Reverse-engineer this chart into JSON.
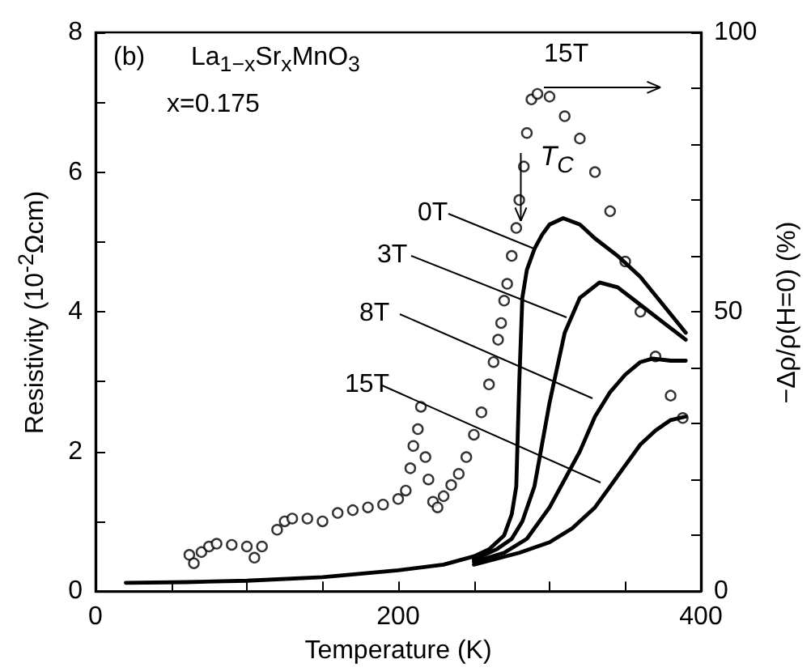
{
  "chart_data": {
    "type": "line",
    "xlabel": "Temperature (K)",
    "ylabel": "Resistivity (10$^{-2}$Ωcm)",
    "y2label": "−Δρ/ρ(H=0) (%)",
    "annotations": [
      "(b)",
      "La$_{1−x}$Sr$_{x}$MnO$_{3}$",
      "x=0.175",
      {
        "text": "T$_{C}$",
        "x": 281,
        "y": 5.3
      }
    ],
    "xlim": [
      0,
      400
    ],
    "xticks": [
      0,
      {
        "value": 50,
        "label": null
      },
      {
        "value": 100,
        "label": null
      },
      {
        "value": 150,
        "label": null
      },
      200,
      {
        "value": 250,
        "label": null
      },
      {
        "value": 300,
        "label": null
      },
      {
        "value": 350,
        "label": null
      },
      400
    ],
    "ylim": [
      0,
      8
    ],
    "yticks": [
      0,
      {
        "value": 1,
        "label": null
      },
      2,
      {
        "value": 3,
        "label": null
      },
      4,
      {
        "value": 5,
        "label": null
      },
      6,
      {
        "value": 7,
        "label": null
      },
      8
    ],
    "y2lim": [
      0,
      100
    ],
    "y2ticks": [
      0,
      {
        "value": 10,
        "label": null
      },
      {
        "value": 20,
        "label": null
      },
      {
        "value": 30,
        "label": null
      },
      {
        "value": 40,
        "label": null
      },
      50,
      {
        "value": 60,
        "label": null
      },
      {
        "value": 70,
        "label": null
      },
      {
        "value": 80,
        "label": null
      },
      {
        "value": 90,
        "label": null
      },
      100
    ],
    "grid": false,
    "legend": false,
    "marker": "none",
    "line_style": "solid",
    "series": [
      {
        "name": "0T",
        "color": "#000000",
        "x": [
          20,
          60,
          100,
          150,
          200,
          230,
          250,
          260,
          270,
          275,
          278,
          280,
          282,
          285,
          290,
          295,
          300,
          309,
          320,
          330,
          345,
          360,
          375,
          390
        ],
        "values": [
          0.12,
          0.13,
          0.15,
          0.2,
          0.3,
          0.38,
          0.5,
          0.6,
          0.8,
          1.1,
          1.5,
          3.0,
          4.2,
          4.6,
          4.9,
          5.1,
          5.25,
          5.34,
          5.25,
          5.05,
          4.8,
          4.5,
          4.1,
          3.7
        ]
      },
      {
        "name": "3T",
        "color": "#000000",
        "x": [
          250,
          265,
          275,
          282,
          290,
          300,
          310,
          320,
          333,
          345,
          360,
          375,
          390
        ],
        "values": [
          0.45,
          0.6,
          0.75,
          1.0,
          1.5,
          2.7,
          3.7,
          4.2,
          4.42,
          4.35,
          4.1,
          3.85,
          3.6
        ]
      },
      {
        "name": "8T",
        "color": "#000000",
        "x": [
          250,
          270,
          285,
          300,
          310,
          320,
          330,
          340,
          350,
          360,
          368,
          380,
          390
        ],
        "values": [
          0.42,
          0.55,
          0.75,
          1.2,
          1.6,
          2.0,
          2.5,
          2.85,
          3.1,
          3.28,
          3.33,
          3.3,
          3.3
        ]
      },
      {
        "name": "15T",
        "color": "#000000",
        "x": [
          250,
          280,
          300,
          315,
          330,
          340,
          350,
          360,
          370,
          380,
          390
        ],
        "values": [
          0.38,
          0.55,
          0.7,
          0.9,
          1.2,
          1.5,
          1.8,
          2.1,
          2.3,
          2.45,
          2.5
        ]
      },
      {
        "name": "15T",
        "type": "scatter",
        "marker": "circle",
        "axis": "y2",
        "color": "#000000",
        "x": [
          62,
          65,
          70,
          75,
          80,
          90,
          100,
          105,
          110,
          120,
          125,
          130,
          140,
          150,
          160,
          170,
          180,
          190,
          200,
          205,
          208,
          210,
          213,
          215,
          218,
          220,
          223,
          226,
          230,
          235,
          240,
          245,
          250,
          255,
          260,
          263,
          266,
          268,
          270,
          272,
          275,
          278,
          280,
          283,
          285,
          288,
          292,
          300,
          310,
          320,
          330,
          340,
          350,
          360,
          370,
          380,
          388
        ],
        "values": [
          6.5,
          5,
          7,
          8,
          8.5,
          8.3,
          8,
          6,
          8,
          11,
          12.5,
          13,
          13,
          12.5,
          14,
          14.5,
          15,
          15.5,
          16.5,
          18,
          22,
          26,
          29,
          33,
          24,
          20,
          16,
          15,
          17,
          19,
          21,
          24,
          28,
          32,
          37,
          41,
          45,
          48,
          52,
          55,
          60,
          65,
          70,
          76,
          82,
          88,
          89,
          88.5,
          85,
          81,
          75,
          68,
          59,
          50,
          42,
          35,
          31
        ]
      }
    ]
  }
}
